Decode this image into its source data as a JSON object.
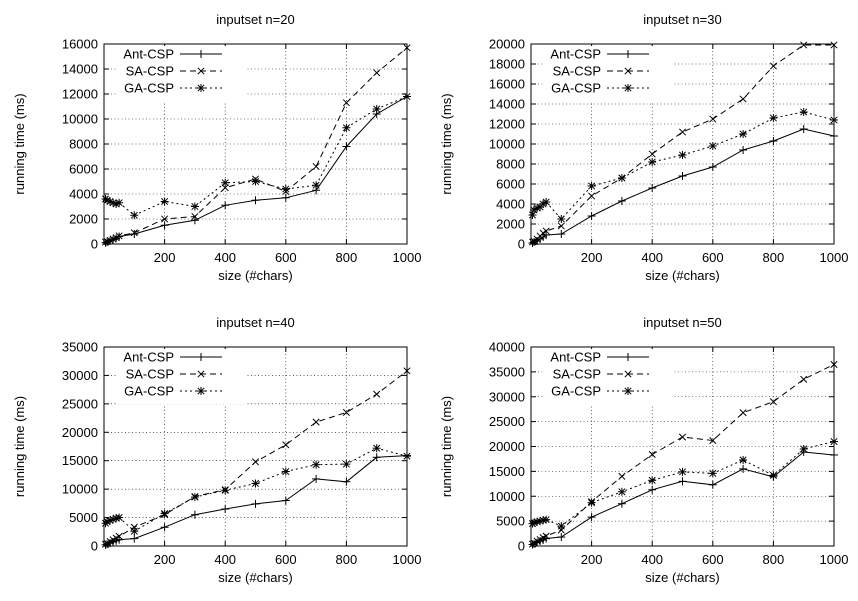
{
  "chart_data": [
    {
      "type": "line",
      "title": "inputset n=20",
      "xlabel": "size (#chars)",
      "ylabel": "running time (ms)",
      "xlim": [
        0,
        1000
      ],
      "ylim": [
        0,
        16000
      ],
      "xticks": [
        200,
        400,
        600,
        800,
        1000
      ],
      "yticks": [
        0,
        2000,
        4000,
        6000,
        8000,
        10000,
        12000,
        14000,
        16000
      ],
      "grid": true,
      "legend_position": "top-left",
      "x": [
        5,
        10,
        20,
        30,
        40,
        50,
        100,
        200,
        300,
        400,
        500,
        600,
        700,
        800,
        900,
        1000
      ],
      "series": [
        {
          "name": "Ant-CSP",
          "style": "solid",
          "marker": "plus",
          "values": [
            100,
            150,
            250,
            350,
            450,
            600,
            800,
            1500,
            1900,
            3100,
            3500,
            3700,
            4300,
            7800,
            10400,
            11800
          ]
        },
        {
          "name": "SA-CSP",
          "style": "dashed",
          "marker": "x",
          "values": [
            150,
            200,
            300,
            400,
            500,
            650,
            900,
            2000,
            2200,
            4500,
            5200,
            4200,
            6200,
            11300,
            13700,
            15700
          ]
        },
        {
          "name": "GA-CSP",
          "style": "dotted",
          "marker": "asterisk",
          "values": [
            3600,
            3500,
            3400,
            3300,
            3200,
            3300,
            2300,
            3400,
            3000,
            4900,
            5000,
            4400,
            4700,
            9300,
            10800,
            11800
          ]
        }
      ]
    },
    {
      "type": "line",
      "title": "inputset n=30",
      "xlabel": "size (#chars)",
      "ylabel": "running time (ms)",
      "xlim": [
        0,
        1000
      ],
      "ylim": [
        0,
        20000
      ],
      "xticks": [
        200,
        400,
        600,
        800,
        1000
      ],
      "yticks": [
        0,
        2000,
        4000,
        6000,
        8000,
        10000,
        12000,
        14000,
        16000,
        18000,
        20000
      ],
      "grid": true,
      "legend_position": "top-left",
      "x": [
        5,
        10,
        20,
        30,
        40,
        50,
        100,
        200,
        300,
        400,
        500,
        600,
        700,
        800,
        900,
        1000
      ],
      "series": [
        {
          "name": "Ant-CSP",
          "style": "solid",
          "marker": "plus",
          "values": [
            100,
            200,
            300,
            500,
            700,
            900,
            1000,
            2800,
            4300,
            5600,
            6800,
            7700,
            9400,
            10300,
            11500,
            10800
          ]
        },
        {
          "name": "SA-CSP",
          "style": "dashed",
          "marker": "x",
          "values": [
            200,
            300,
            500,
            800,
            1100,
            1300,
            1800,
            4800,
            6600,
            9000,
            11200,
            12500,
            14500,
            17800,
            19900,
            19900
          ]
        },
        {
          "name": "GA-CSP",
          "style": "dotted",
          "marker": "asterisk",
          "values": [
            2900,
            3400,
            3600,
            3700,
            4000,
            4200,
            2500,
            5800,
            6600,
            8200,
            8900,
            9800,
            11000,
            12600,
            13200,
            12400
          ]
        }
      ]
    },
    {
      "type": "line",
      "title": "inputset n=40",
      "xlabel": "size (#chars)",
      "ylabel": "running time (ms)",
      "xlim": [
        0,
        1000
      ],
      "ylim": [
        0,
        35000
      ],
      "xticks": [
        200,
        400,
        600,
        800,
        1000
      ],
      "yticks": [
        0,
        5000,
        10000,
        15000,
        20000,
        25000,
        30000,
        35000
      ],
      "grid": true,
      "legend_position": "top-left",
      "x": [
        5,
        10,
        20,
        30,
        40,
        50,
        100,
        200,
        300,
        400,
        500,
        600,
        700,
        800,
        900,
        1000
      ],
      "series": [
        {
          "name": "Ant-CSP",
          "style": "solid",
          "marker": "plus",
          "values": [
            200,
            300,
            500,
            700,
            900,
            1100,
            1300,
            3300,
            5500,
            6500,
            7400,
            8000,
            11800,
            11300,
            15600,
            15900
          ]
        },
        {
          "name": "SA-CSP",
          "style": "dashed",
          "marker": "x",
          "values": [
            300,
            500,
            800,
            1100,
            1400,
            1700,
            3300,
            5500,
            8700,
            9900,
            14800,
            17800,
            21800,
            23500,
            26700,
            30800
          ]
        },
        {
          "name": "GA-CSP",
          "style": "dotted",
          "marker": "asterisk",
          "values": [
            4000,
            4300,
            4500,
            4700,
            4900,
            5000,
            2600,
            5700,
            8600,
            9800,
            11000,
            13100,
            14300,
            14400,
            17200,
            15800
          ]
        }
      ]
    },
    {
      "type": "line",
      "title": "inputset n=50",
      "xlabel": "size (#chars)",
      "ylabel": "running time (ms)",
      "xlim": [
        0,
        1000
      ],
      "ylim": [
        0,
        40000
      ],
      "xticks": [
        200,
        400,
        600,
        800,
        1000
      ],
      "yticks": [
        0,
        5000,
        10000,
        15000,
        20000,
        25000,
        30000,
        35000,
        40000
      ],
      "grid": true,
      "legend_position": "top-left",
      "x": [
        5,
        10,
        20,
        30,
        40,
        50,
        100,
        200,
        300,
        400,
        500,
        600,
        700,
        800,
        900,
        1000
      ],
      "series": [
        {
          "name": "Ant-CSP",
          "style": "solid",
          "marker": "plus",
          "values": [
            300,
            400,
            700,
            1000,
            1200,
            1500,
            1800,
            5800,
            8500,
            11300,
            13000,
            12300,
            15500,
            13900,
            18900,
            18300
          ]
        },
        {
          "name": "SA-CSP",
          "style": "dashed",
          "marker": "x",
          "values": [
            400,
            600,
            1000,
            1300,
            1700,
            2000,
            3200,
            8900,
            14000,
            18400,
            21900,
            21200,
            26800,
            29000,
            33500,
            36500
          ]
        },
        {
          "name": "GA-CSP",
          "style": "dotted",
          "marker": "asterisk",
          "values": [
            4500,
            4700,
            4900,
            5000,
            5200,
            5300,
            4000,
            8700,
            10900,
            13200,
            14900,
            14600,
            17300,
            14200,
            19500,
            21000
          ]
        }
      ]
    }
  ]
}
